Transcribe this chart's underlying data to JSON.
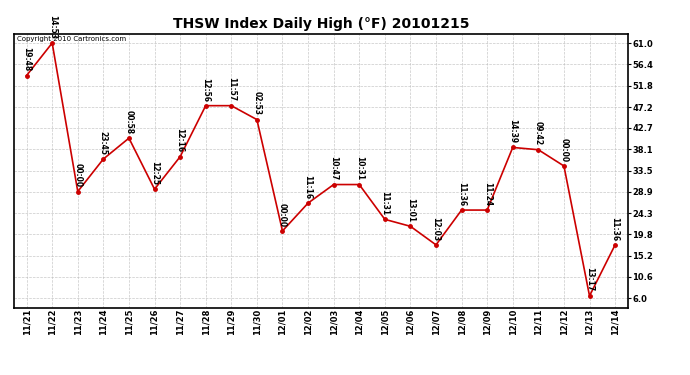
{
  "title": "THSW Index Daily High (°F) 20101215",
  "copyright": "Copyright 2010 Cartronics.com",
  "x_labels": [
    "11/21",
    "11/22",
    "11/23",
    "11/24",
    "11/25",
    "11/26",
    "11/27",
    "11/28",
    "11/29",
    "11/30",
    "12/01",
    "12/02",
    "12/03",
    "12/04",
    "12/05",
    "12/06",
    "12/07",
    "12/08",
    "12/09",
    "12/10",
    "12/11",
    "12/12",
    "12/13",
    "12/14"
  ],
  "y_values": [
    54.0,
    61.0,
    29.0,
    36.0,
    40.5,
    29.5,
    36.5,
    47.5,
    47.5,
    44.5,
    20.5,
    26.5,
    30.5,
    30.5,
    23.0,
    21.5,
    17.5,
    25.0,
    25.0,
    38.5,
    38.0,
    34.5,
    6.5,
    17.5
  ],
  "annotations": [
    "19:48",
    "14:53",
    "00:00",
    "23:45",
    "00:58",
    "12:25",
    "12:16",
    "12:56",
    "11:57",
    "02:53",
    "00:00",
    "11:16",
    "10:47",
    "10:31",
    "11:31",
    "13:01",
    "12:03",
    "11:36",
    "11:24",
    "14:39",
    "09:42",
    "00:00",
    "13:17",
    "11:36"
  ],
  "line_color": "#cc0000",
  "marker_color": "#cc0000",
  "background_color": "#ffffff",
  "grid_color": "#bbbbbb",
  "ylim": [
    4.0,
    63.0
  ],
  "yticks": [
    6.0,
    10.6,
    15.2,
    19.8,
    24.3,
    28.9,
    33.5,
    38.1,
    42.7,
    47.2,
    51.8,
    56.4,
    61.0
  ],
  "title_fontsize": 10,
  "label_fontsize": 6,
  "annot_fontsize": 5.5,
  "copyright_fontsize": 5
}
